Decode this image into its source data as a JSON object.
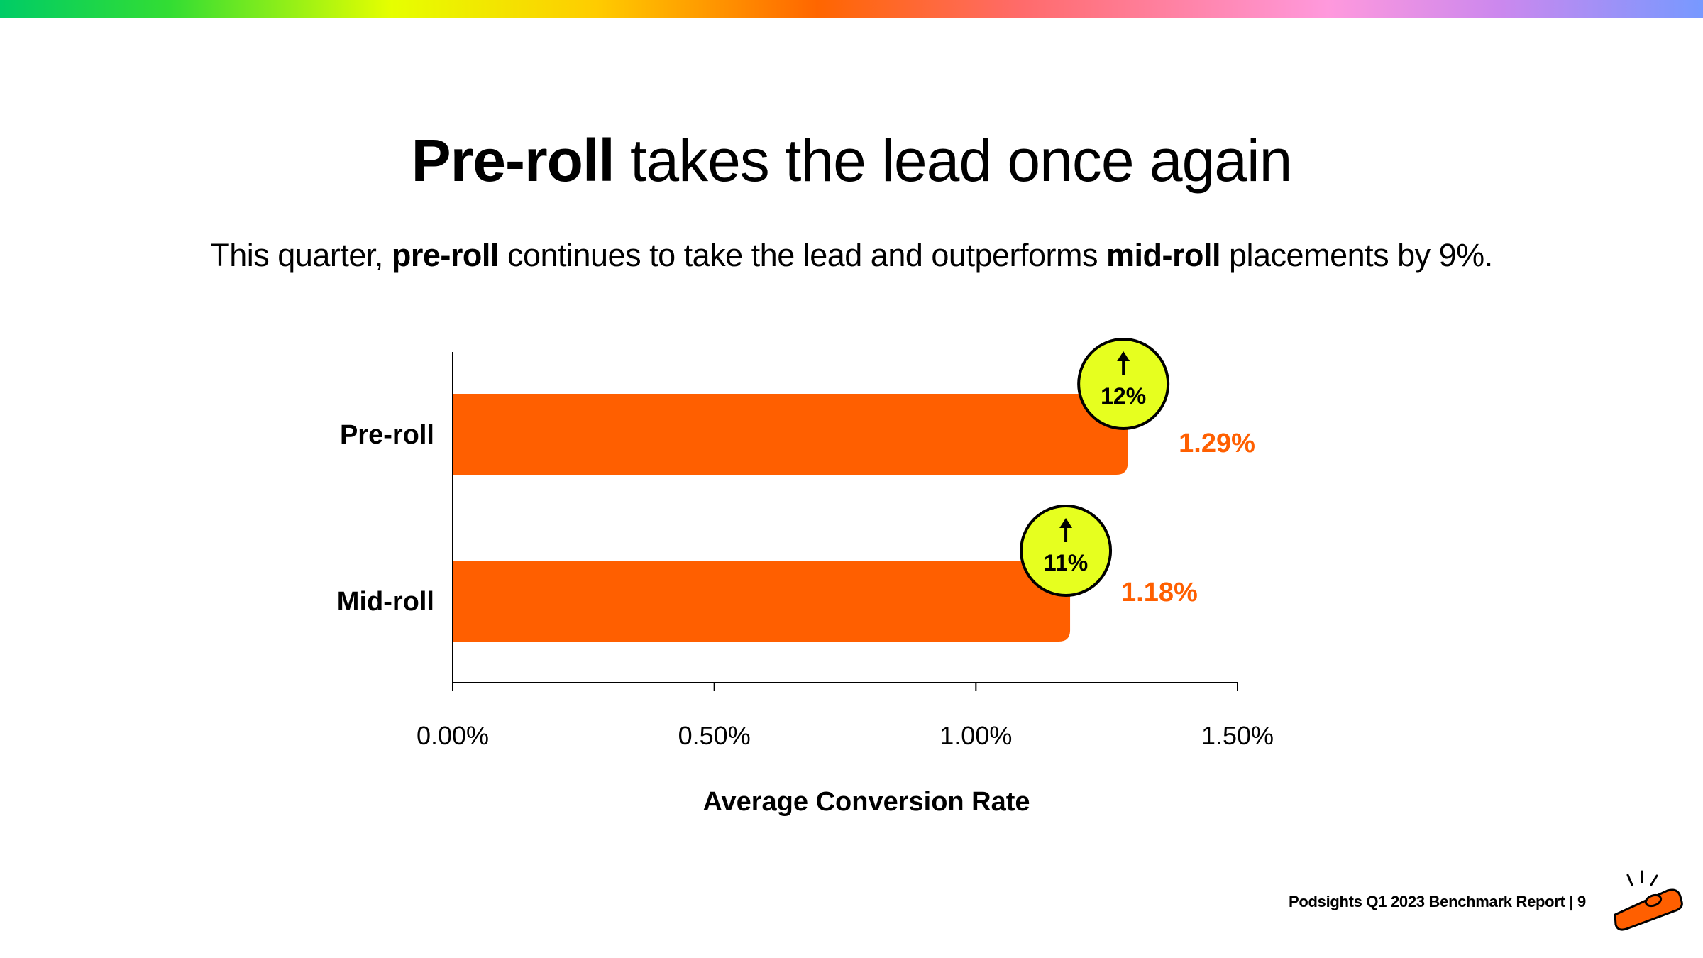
{
  "header": {
    "title_bold": "Pre-roll",
    "title_rest": " takes the lead once again",
    "subtitle": {
      "part1": "This quarter, ",
      "bold1": "pre-roll",
      "part2": " continues to take the lead and outperforms ",
      "bold2": "mid-roll",
      "part3": " placements by 9%."
    }
  },
  "chart_data": {
    "type": "bar",
    "orientation": "horizontal",
    "categories": [
      "Pre-roll",
      "Mid-roll"
    ],
    "values": [
      1.29,
      1.18
    ],
    "value_labels": [
      "1.29%",
      "1.18%"
    ],
    "badges": [
      {
        "label": "12%",
        "direction": "up"
      },
      {
        "label": "11%",
        "direction": "up"
      }
    ],
    "xlabel": "Average Conversion Rate",
    "xlim": [
      0,
      1.5
    ],
    "xticks": [
      0,
      0.5,
      1.0,
      1.5
    ],
    "xtick_labels": [
      "0.00%",
      "0.50%",
      "1.00%",
      "1.50%"
    ],
    "grid": false,
    "bar_color": "#ff5f00",
    "label_color": "#ff5f00",
    "badge_color": "#e6ff1f"
  },
  "footer": {
    "report_label": "Podsights Q1 2023 Benchmark Report | 9"
  },
  "logo": {
    "icon": "kazoo-logo-icon"
  }
}
